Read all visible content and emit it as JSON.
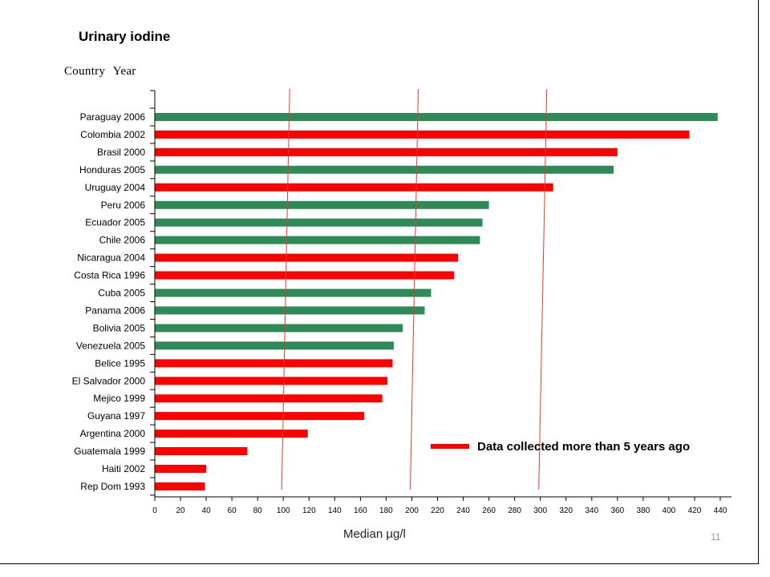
{
  "slide": {
    "title": "Urinary iodine",
    "header_label": "Country   Year",
    "slide_number": "11"
  },
  "legend": {
    "text": "Data collected  more than 5 years ago",
    "color": "#ff0000"
  },
  "colors": {
    "recent": "#2e8b57",
    "old": "#ff0000",
    "threshold": "#e8392c"
  },
  "chart_data": {
    "type": "bar",
    "orientation": "horizontal",
    "title": "Urinary iodine",
    "xlabel": "Median  µg/l",
    "xlim": [
      0,
      440
    ],
    "xticks": [
      0,
      20,
      40,
      60,
      80,
      100,
      120,
      140,
      160,
      180,
      200,
      220,
      240,
      260,
      280,
      300,
      320,
      340,
      360,
      380,
      400,
      420,
      440
    ],
    "threshold_lines": [
      100,
      200,
      300
    ],
    "categories": [
      "Paraguay 2006",
      "Colombia 2002",
      "Brasil 2000",
      "Honduras 2005",
      "Uruguay 2004",
      "Peru 2006",
      "Ecuador 2005",
      "Chile 2006",
      "Nicaragua 2004",
      "Costa Rica 1996",
      "Cuba 2005",
      "Panama 2006",
      "Bolivia 2005",
      "Venezuela 2005",
      "Belice 1995",
      "El Salvador 2000",
      "Mejico 1999",
      "Guyana 1997",
      "Argentina 2000",
      "Guatemala 1999",
      "Haiti 2002",
      "Rep Dom 1993"
    ],
    "values": [
      438,
      416,
      360,
      357,
      310,
      260,
      255,
      253,
      236,
      233,
      215,
      210,
      193,
      186,
      185,
      181,
      177,
      163,
      119,
      72,
      40,
      39
    ],
    "old_data": [
      false,
      true,
      true,
      false,
      true,
      false,
      false,
      false,
      true,
      true,
      false,
      false,
      false,
      false,
      true,
      true,
      true,
      true,
      true,
      true,
      true,
      true
    ],
    "legend": "top-right inside plot, lower part"
  }
}
